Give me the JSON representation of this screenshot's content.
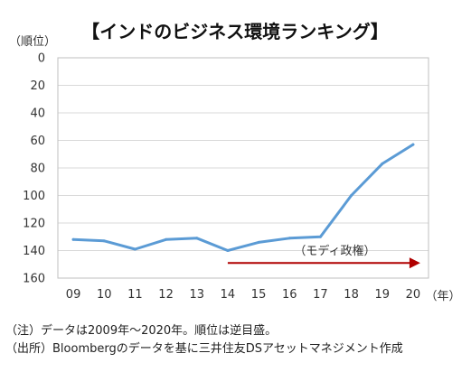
{
  "chart_data": {
    "type": "line",
    "title": "【インドのビジネス環境ランキング】",
    "ylabel": "（順位）",
    "xlabel": "（年）",
    "x": [
      "09",
      "10",
      "11",
      "12",
      "13",
      "14",
      "15",
      "16",
      "17",
      "18",
      "19",
      "20"
    ],
    "series": [
      {
        "values": [
          132,
          133,
          139,
          132,
          131,
          140,
          134,
          131,
          130,
          100,
          77,
          63
        ]
      }
    ],
    "ylim": [
      160,
      0
    ],
    "yticks": [
      0,
      20,
      40,
      60,
      80,
      100,
      120,
      140,
      160
    ],
    "y_inverted": true,
    "grid": true,
    "annotation": {
      "text": "（モディ政権）",
      "from_x": "14",
      "to_x": "20",
      "y": 149
    },
    "colors": {
      "line": "#5b9bd5",
      "arrow": "#b00000",
      "grid": "#d9d9d9",
      "axis": "#bfbfbf"
    }
  },
  "notes": {
    "note1": "（注）データは2009年～2020年。順位は逆目盛。",
    "note2": "（出所）Bloombergのデータを基に三井住友DSアセットマネジメント作成"
  }
}
